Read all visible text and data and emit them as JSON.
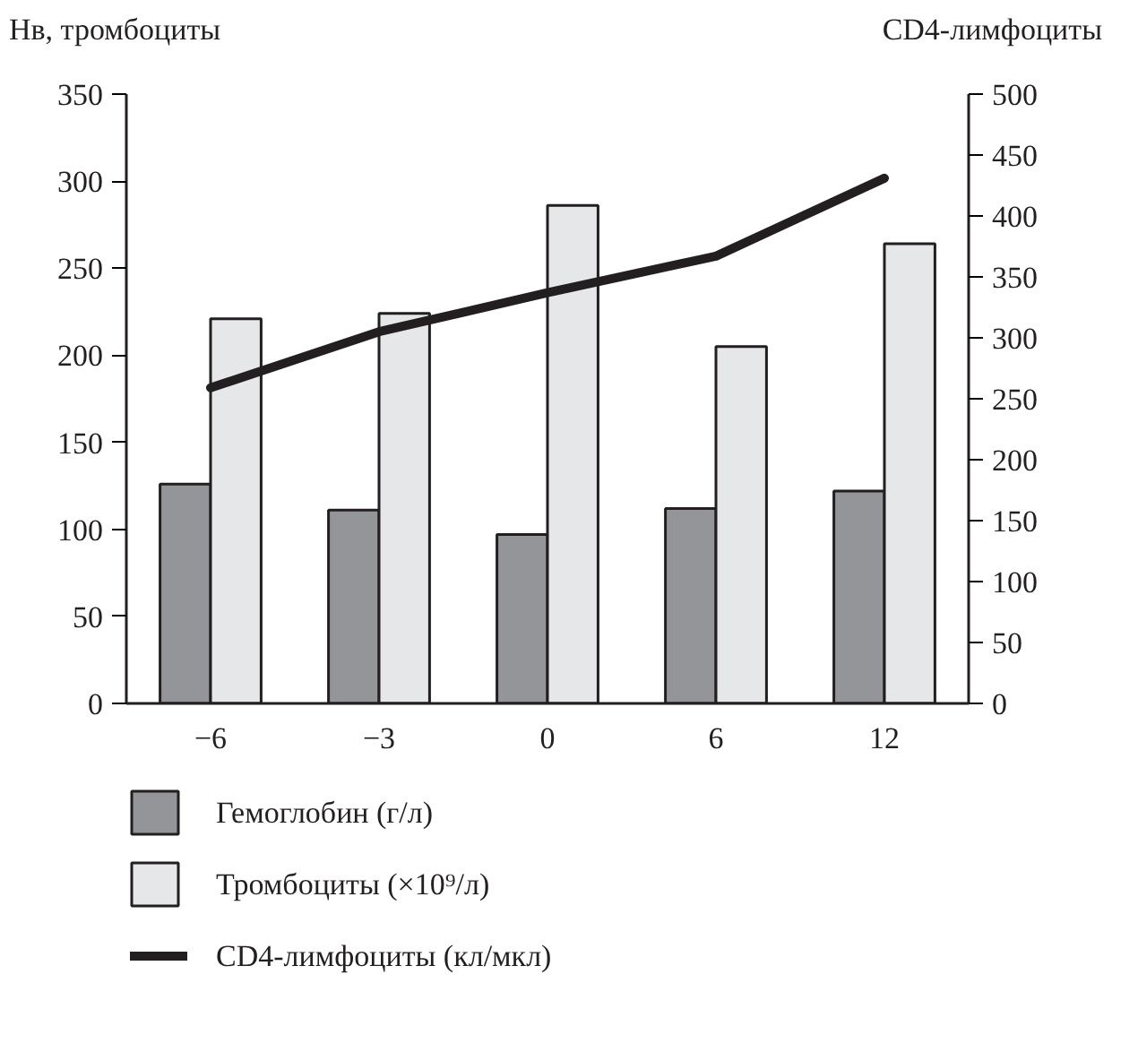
{
  "chart_data": {
    "type": "bar",
    "ylabel": "Нв, тромбоциты",
    "y2label": "CD4-лимфоциты",
    "categories": [
      "−6",
      "−3",
      "0",
      "6",
      "12"
    ],
    "series": [
      {
        "name": "Гемоглобин (г/л)",
        "color": "#939598",
        "values": [
          126,
          111,
          97,
          112,
          122
        ]
      },
      {
        "name": "Тромбоциты (×10⁹/л)",
        "color": "#e6e7e8",
        "values": [
          221,
          224,
          286,
          205,
          264
        ]
      },
      {
        "name": "CD4-лимфоциты (кл/мкл)",
        "type": "line",
        "axis": "y2",
        "color": "#231f20",
        "values": [
          259,
          305,
          337,
          367,
          431
        ]
      }
    ],
    "ylim": [
      0,
      350
    ],
    "yticks": [
      0,
      50,
      100,
      150,
      200,
      250,
      300,
      350
    ],
    "y2lim": [
      0,
      500
    ],
    "y2ticks": [
      0,
      50,
      100,
      150,
      200,
      250,
      300,
      350,
      400,
      450,
      500
    ],
    "grid": false,
    "legend": "bottom"
  }
}
